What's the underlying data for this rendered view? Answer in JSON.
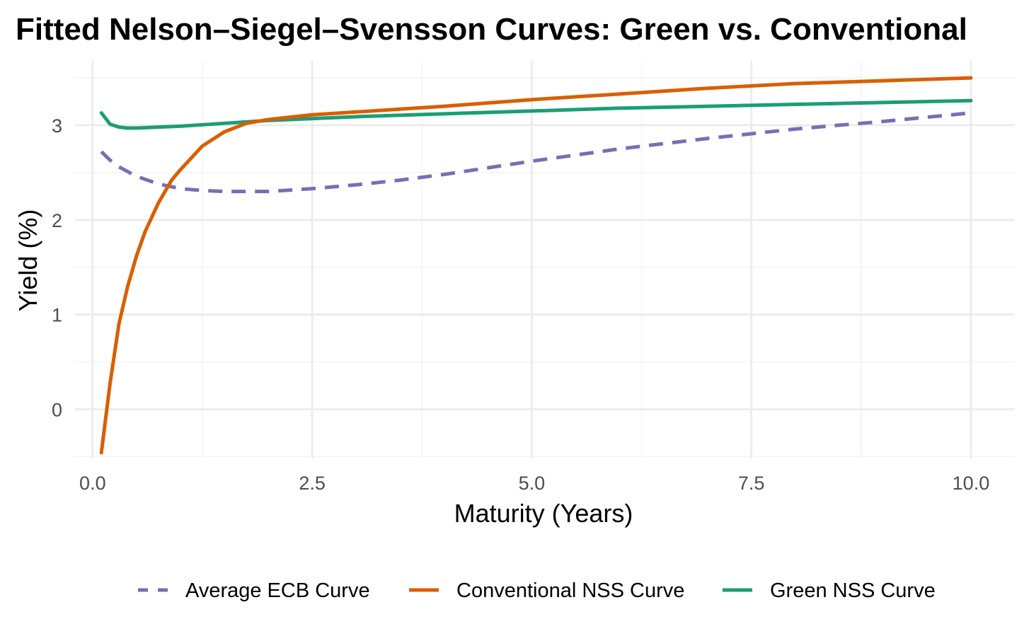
{
  "chart_data": {
    "type": "line",
    "title": "Fitted Nelson–Siegel–Svensson Curves: Green vs. Conventional",
    "xlabel": "Maturity (Years)",
    "ylabel": "Yield (%)",
    "xlim": [
      -0.2,
      10.5
    ],
    "ylim": [
      -0.52,
      3.68
    ],
    "x_ticks": [
      0,
      2.5,
      5,
      7.5,
      10
    ],
    "x_tick_labels": [
      "0.0",
      "2.5",
      "5.0",
      "7.5",
      "10.0"
    ],
    "y_ticks": [
      0,
      1,
      2,
      3
    ],
    "y_tick_labels": [
      "0",
      "1",
      "2",
      "3"
    ],
    "grid": true,
    "legend_position": "bottom",
    "series": [
      {
        "name": "Average ECB Curve",
        "color": "#7570B3",
        "line_style": "dashed",
        "x": [
          0.1,
          0.2,
          0.3,
          0.5,
          0.75,
          1.0,
          1.25,
          1.5,
          2.0,
          2.5,
          3.0,
          3.5,
          4.0,
          5.0,
          6.0,
          7.0,
          8.0,
          9.0,
          10.0
        ],
        "y": [
          2.72,
          2.63,
          2.56,
          2.46,
          2.38,
          2.33,
          2.31,
          2.3,
          2.3,
          2.33,
          2.37,
          2.42,
          2.48,
          2.62,
          2.75,
          2.86,
          2.96,
          3.04,
          3.13
        ]
      },
      {
        "name": "Conventional NSS Curve",
        "color": "#D95F02",
        "line_style": "solid",
        "x": [
          0.1,
          0.2,
          0.3,
          0.4,
          0.5,
          0.6,
          0.75,
          0.9,
          1.0,
          1.25,
          1.5,
          1.75,
          2.0,
          2.5,
          3.0,
          3.5,
          4.0,
          5.0,
          6.0,
          7.0,
          8.0,
          9.0,
          10.0
        ],
        "y": [
          -0.46,
          0.28,
          0.9,
          1.3,
          1.62,
          1.88,
          2.18,
          2.42,
          2.53,
          2.78,
          2.93,
          3.02,
          3.06,
          3.11,
          3.14,
          3.17,
          3.2,
          3.27,
          3.33,
          3.39,
          3.44,
          3.47,
          3.5
        ]
      },
      {
        "name": "Green NSS Curve",
        "color": "#1B9E77",
        "line_style": "solid",
        "x": [
          0.1,
          0.15,
          0.2,
          0.3,
          0.4,
          0.5,
          0.75,
          1.0,
          1.5,
          2.0,
          2.5,
          3.0,
          4.0,
          5.0,
          6.0,
          7.0,
          8.0,
          9.0,
          10.0
        ],
        "y": [
          3.13,
          3.07,
          3.01,
          2.98,
          2.97,
          2.97,
          2.98,
          2.99,
          3.02,
          3.05,
          3.07,
          3.09,
          3.12,
          3.15,
          3.18,
          3.2,
          3.22,
          3.24,
          3.26
        ]
      }
    ]
  }
}
